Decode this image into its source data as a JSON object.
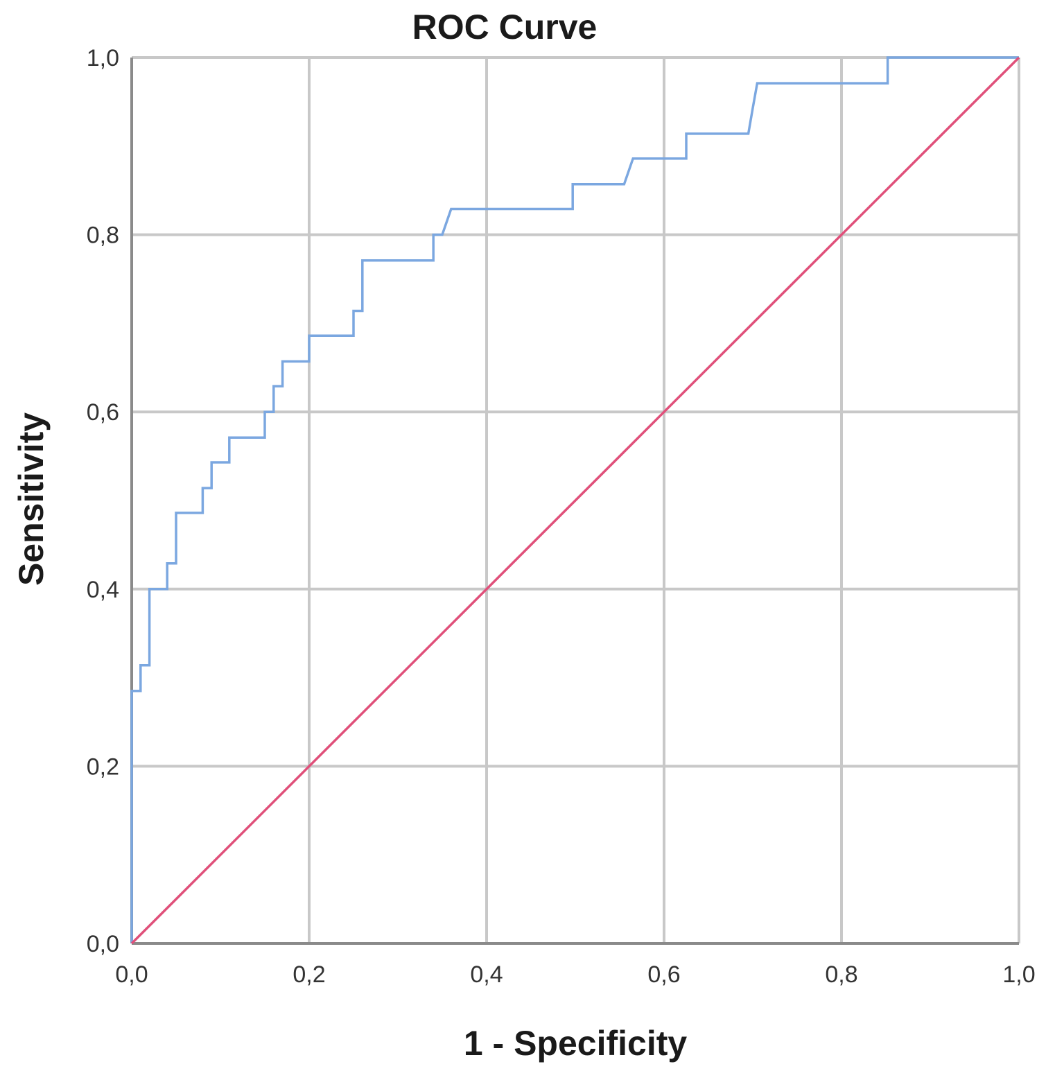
{
  "chart_data": {
    "type": "line",
    "title": "ROC Curve",
    "xlabel": "1 - Specificity",
    "ylabel": "Sensitivity",
    "xlim": [
      0,
      1
    ],
    "ylim": [
      0,
      1
    ],
    "x_ticks": [
      "0,0",
      "0,2",
      "0,4",
      "0,6",
      "0,8",
      "1,0"
    ],
    "y_ticks": [
      "0,0",
      "0,2",
      "0,4",
      "0,6",
      "0,8",
      "1,0"
    ],
    "grid": true,
    "series": [
      {
        "color": "#7ba7e0",
        "points": [
          [
            0.0,
            0.0
          ],
          [
            0.0,
            0.285
          ],
          [
            0.01,
            0.285
          ],
          [
            0.01,
            0.314
          ],
          [
            0.02,
            0.314
          ],
          [
            0.02,
            0.4
          ],
          [
            0.04,
            0.4
          ],
          [
            0.04,
            0.429
          ],
          [
            0.05,
            0.429
          ],
          [
            0.05,
            0.486
          ],
          [
            0.08,
            0.486
          ],
          [
            0.08,
            0.514
          ],
          [
            0.09,
            0.514
          ],
          [
            0.09,
            0.543
          ],
          [
            0.11,
            0.543
          ],
          [
            0.11,
            0.571
          ],
          [
            0.15,
            0.571
          ],
          [
            0.15,
            0.6
          ],
          [
            0.16,
            0.6
          ],
          [
            0.16,
            0.629
          ],
          [
            0.17,
            0.629
          ],
          [
            0.17,
            0.657
          ],
          [
            0.2,
            0.657
          ],
          [
            0.2,
            0.686
          ],
          [
            0.25,
            0.686
          ],
          [
            0.25,
            0.714
          ],
          [
            0.26,
            0.714
          ],
          [
            0.26,
            0.771
          ],
          [
            0.34,
            0.771
          ],
          [
            0.34,
            0.8
          ],
          [
            0.35,
            0.8
          ],
          [
            0.36,
            0.829
          ],
          [
            0.497,
            0.829
          ],
          [
            0.497,
            0.857
          ],
          [
            0.555,
            0.857
          ],
          [
            0.565,
            0.886
          ],
          [
            0.625,
            0.886
          ],
          [
            0.625,
            0.914
          ],
          [
            0.695,
            0.914
          ],
          [
            0.7,
            0.943
          ],
          [
            0.705,
            0.971
          ],
          [
            0.852,
            0.971
          ],
          [
            0.852,
            1.0
          ],
          [
            1.0,
            1.0
          ]
        ]
      },
      {
        "color": "#e0507a",
        "points": [
          [
            0,
            0
          ],
          [
            1,
            1
          ]
        ]
      }
    ]
  }
}
